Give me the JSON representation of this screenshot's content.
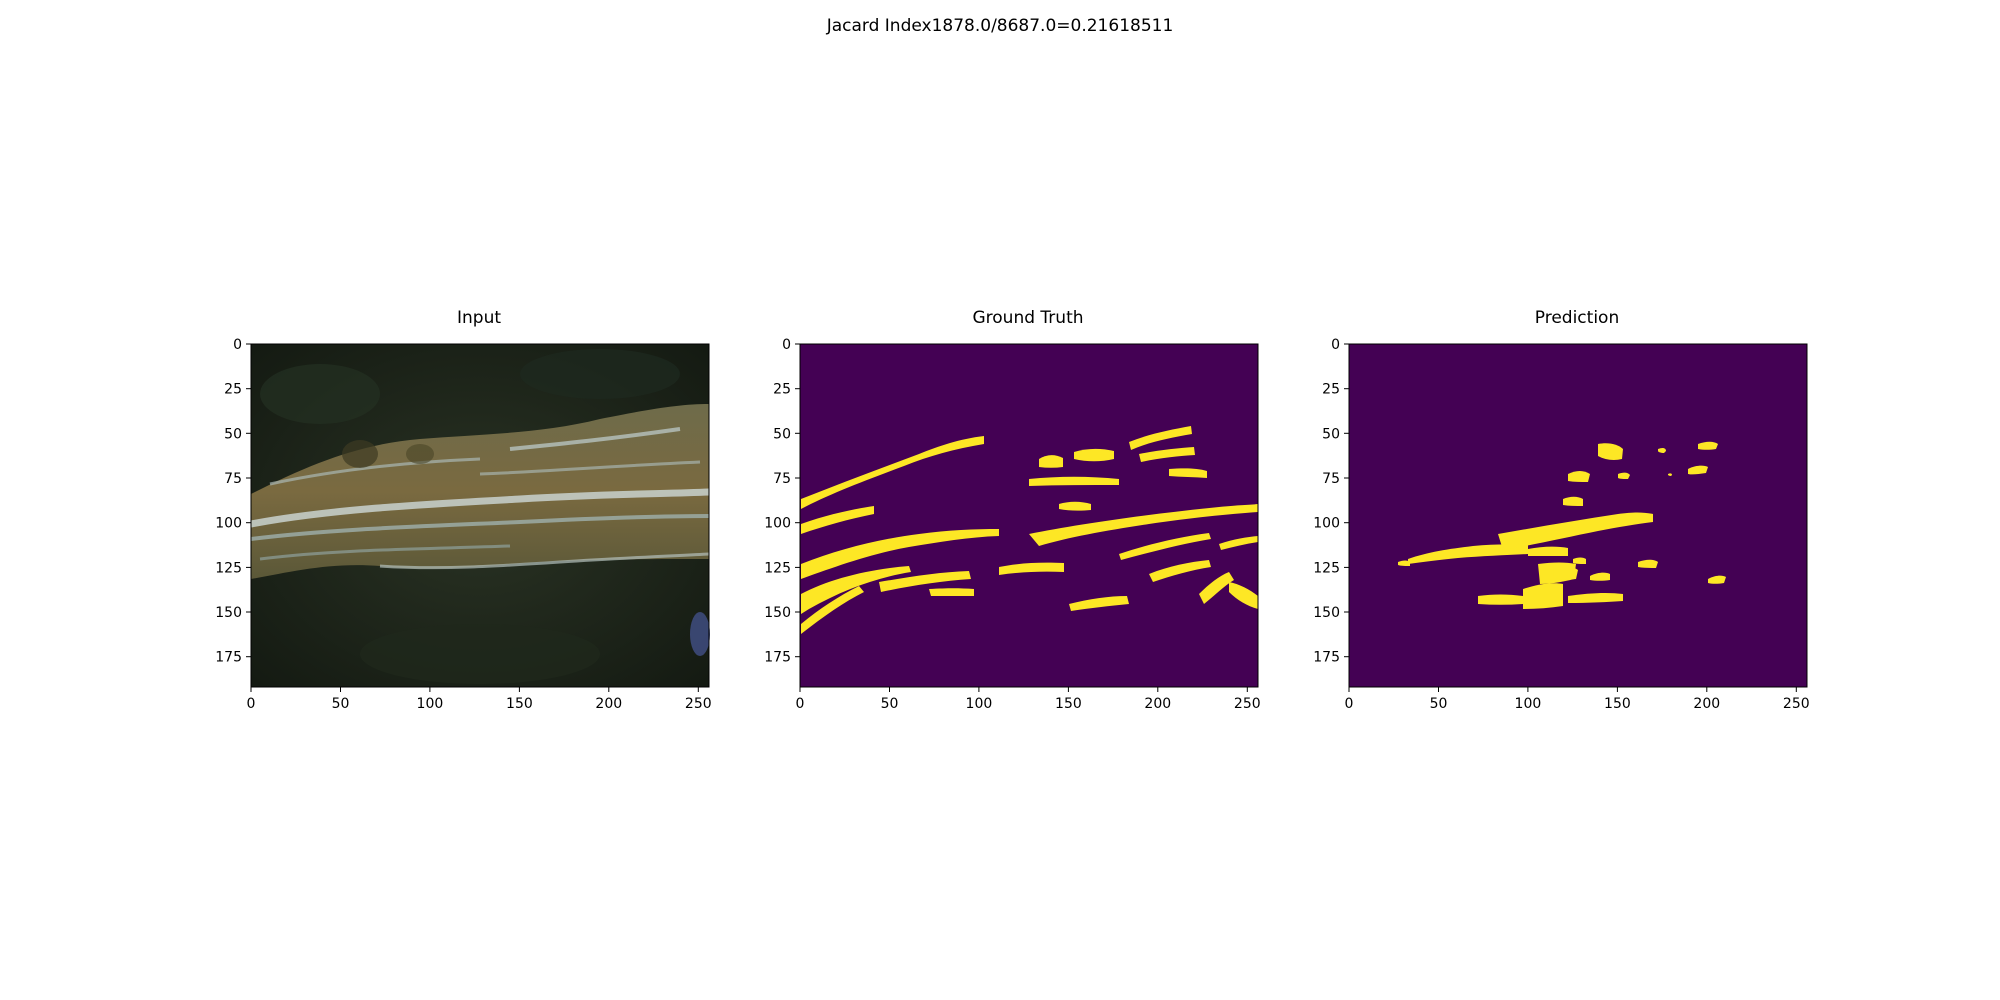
{
  "figure": {
    "suptitle": "Jacard Index1878.0/8687.0=0.21618511"
  },
  "colors": {
    "background": "#440154",
    "foreground": "#fde725"
  },
  "panels": [
    {
      "key": "input",
      "title": "Input",
      "kind": "image",
      "xticks": [
        "0",
        "50",
        "100",
        "150",
        "200",
        "250"
      ],
      "yticks": [
        "0",
        "25",
        "50",
        "75",
        "100",
        "125",
        "150",
        "175"
      ]
    },
    {
      "key": "ground_truth",
      "title": "Ground Truth",
      "kind": "mask",
      "xticks": [
        "0",
        "50",
        "100",
        "150",
        "200",
        "250"
      ],
      "yticks": [
        "0",
        "25",
        "50",
        "75",
        "100",
        "125",
        "150",
        "175"
      ]
    },
    {
      "key": "prediction",
      "title": "Prediction",
      "kind": "mask",
      "xticks": [
        "0",
        "50",
        "100",
        "150",
        "200",
        "250"
      ],
      "yticks": [
        "0",
        "25",
        "50",
        "75",
        "100",
        "125",
        "150",
        "175"
      ]
    }
  ]
}
